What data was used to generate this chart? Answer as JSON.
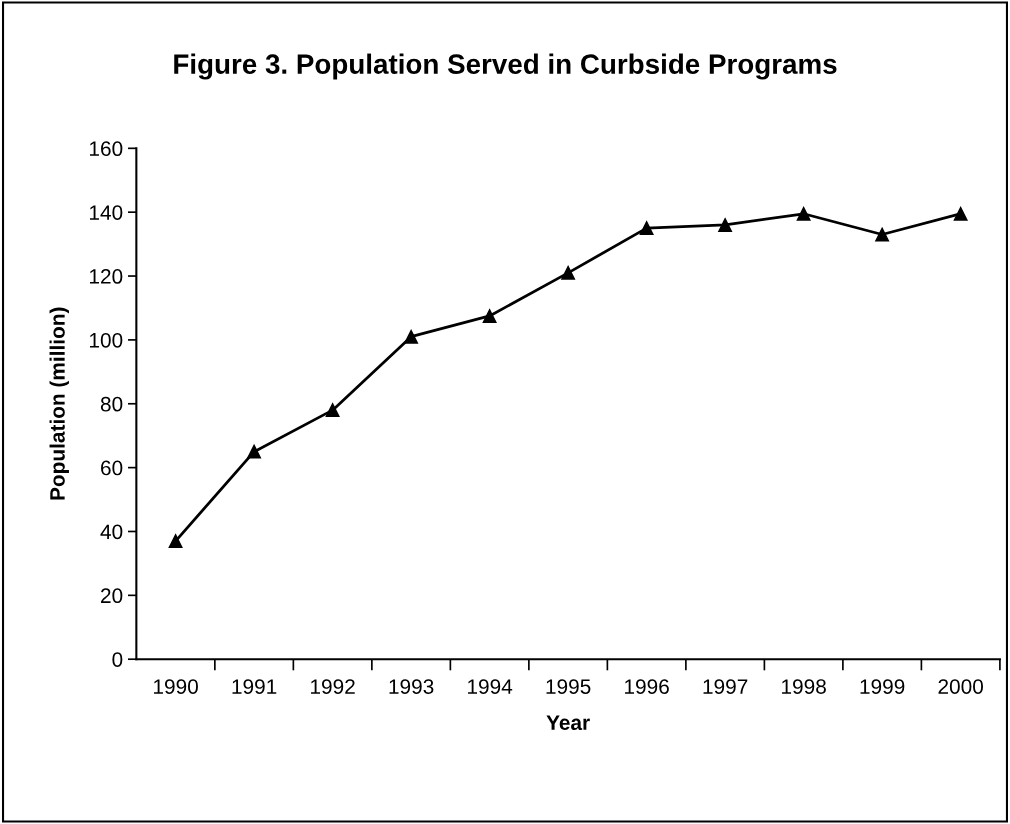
{
  "chart_data": {
    "type": "line",
    "title": "Figure 3. Population Served in Curbside Programs",
    "xlabel": "Year",
    "ylabel": "Population (million)",
    "categories": [
      "1990",
      "1991",
      "1992",
      "1993",
      "1994",
      "1995",
      "1996",
      "1997",
      "1998",
      "1999",
      "2000"
    ],
    "series": [
      {
        "color": "#000000",
        "values": [
          37,
          65,
          78,
          101,
          107.5,
          121,
          135,
          136,
          139.5,
          133,
          139.5
        ]
      }
    ],
    "ylim": [
      0,
      160
    ],
    "yticks": [
      0,
      20,
      40,
      60,
      80,
      100,
      120,
      140,
      160
    ],
    "grid": false,
    "legend": false,
    "marker": "triangle",
    "line_style": "solid"
  }
}
